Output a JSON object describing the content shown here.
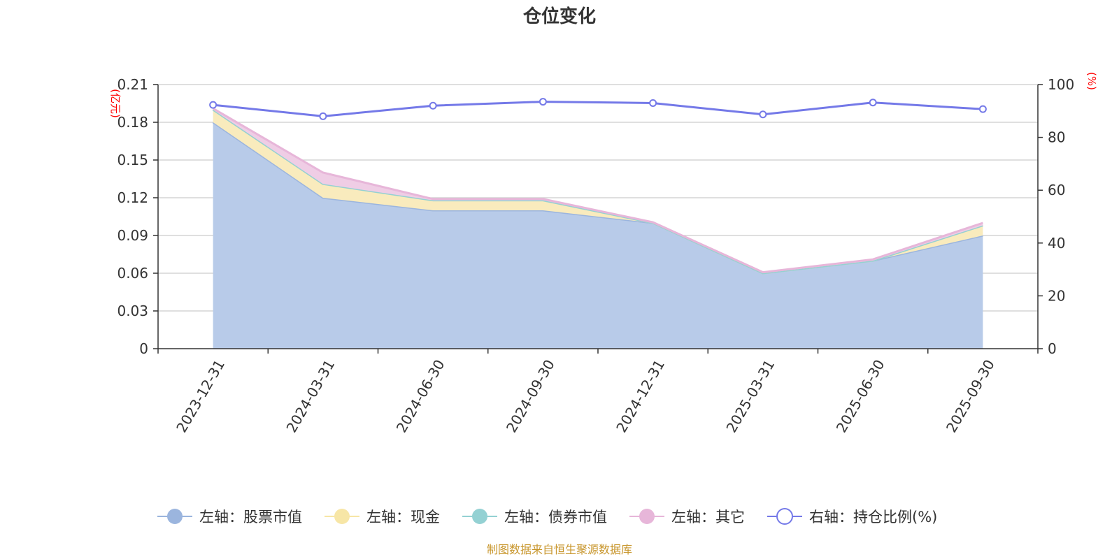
{
  "chart_data": {
    "type": "area",
    "title": "仓位变化",
    "categories": [
      "2023-12-31",
      "2024-03-31",
      "2024-06-30",
      "2024-09-30",
      "2024-12-31",
      "2025-03-31",
      "2025-06-30",
      "2025-09-30"
    ],
    "left_axis": {
      "unit": "(亿元)",
      "ylim": [
        0,
        0.21
      ],
      "ticks": [
        "0",
        "0.03",
        "0.06",
        "0.09",
        "0.12",
        "0.15",
        "0.18",
        "0.21"
      ],
      "tick_values": [
        0,
        0.03,
        0.06,
        0.09,
        0.12,
        0.15,
        0.18,
        0.21
      ]
    },
    "right_axis": {
      "unit": "(%)",
      "ylim": [
        0,
        100
      ],
      "ticks": [
        "0",
        "20",
        "40",
        "60",
        "80",
        "100"
      ],
      "tick_values": [
        0,
        20,
        40,
        60,
        80,
        100
      ]
    },
    "grid": true,
    "legend_position": "bottom",
    "series": [
      {
        "name": "左轴：股票市值",
        "axis": "left",
        "stacked": true,
        "color": "#9bb5de",
        "fill": "#b8cbe9",
        "values": [
          0.18,
          0.12,
          0.11,
          0.11,
          0.1,
          0.06,
          0.07,
          0.09
        ]
      },
      {
        "name": "左轴：现金",
        "axis": "left",
        "stacked": true,
        "color": "#f7e6a6",
        "fill": "#f9ebbd",
        "values": [
          0.01,
          0.011,
          0.008,
          0.008,
          0.0,
          0.0,
          0.0,
          0.008
        ]
      },
      {
        "name": "左轴：债券市值",
        "axis": "left",
        "stacked": true,
        "color": "#94d1d3",
        "fill": "#bfe3e4",
        "values": [
          0,
          0,
          0,
          0,
          0,
          0,
          0,
          0
        ]
      },
      {
        "name": "左轴：其它",
        "axis": "left",
        "stacked": true,
        "color": "#e7b6d9",
        "fill": "#efcde5",
        "values": [
          0.001,
          0.009,
          0.001,
          0.001,
          0.0005,
          0.0008,
          0.001,
          0.002
        ]
      },
      {
        "name": "右轴：持仓比例(%)",
        "axis": "right",
        "type": "line",
        "color": "#7479e8",
        "values": [
          92.3,
          88.0,
          92.0,
          93.5,
          93.0,
          88.7,
          93.2,
          90.7
        ]
      }
    ]
  },
  "source_text": "制图数据来自恒生聚源数据库",
  "colors": {
    "axis": "#333333",
    "grid": "#cccccc",
    "unit": "#ff0000",
    "source": "#c8962c"
  }
}
